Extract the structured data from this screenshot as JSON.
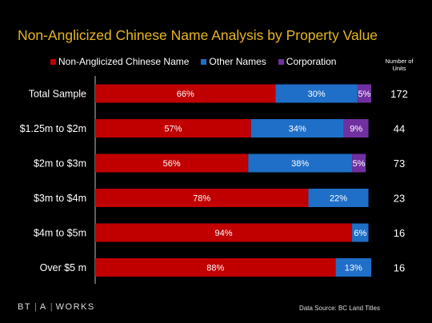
{
  "chart_data": {
    "type": "bar",
    "orientation": "horizontal",
    "stacked": true,
    "title": "Non-Anglicized Chinese Name Analysis by Property Value",
    "categories": [
      "Total Sample",
      "$1.25m to $2m",
      "$2m to $3m",
      "$3m to $4m",
      "$4m to $5m",
      "Over $5 m"
    ],
    "series": [
      {
        "name": "Non-Anglicized Chinese Name",
        "color": "#c00000",
        "values": [
          66,
          57,
          56,
          78,
          94,
          88
        ],
        "labels": [
          "66%",
          "57%",
          "56%",
          "78%",
          "94%",
          "88%"
        ]
      },
      {
        "name": "Other Names",
        "color": "#1f6fc8",
        "values": [
          30,
          34,
          38,
          22,
          6,
          13
        ],
        "labels": [
          "30%",
          "34%",
          "38%",
          "22%",
          "6%",
          "13%"
        ]
      },
      {
        "name": "Corporation",
        "color": "#7030a0",
        "values": [
          5,
          9,
          5,
          0,
          0,
          0
        ],
        "labels": [
          "5%",
          "9%",
          "5%",
          "",
          "",
          ""
        ]
      }
    ],
    "units_label": "Number of Units",
    "units": [
      "172",
      "44",
      "73",
      "23",
      "16",
      "16"
    ],
    "xlim": [
      0,
      101
    ],
    "legend_position": "top",
    "grid": false
  },
  "footer": {
    "logo_left": "BT",
    "logo_sep": "|",
    "logo_a": "A",
    "logo_right": "WORKS",
    "source": "Data Source:  BC Land Titles"
  }
}
